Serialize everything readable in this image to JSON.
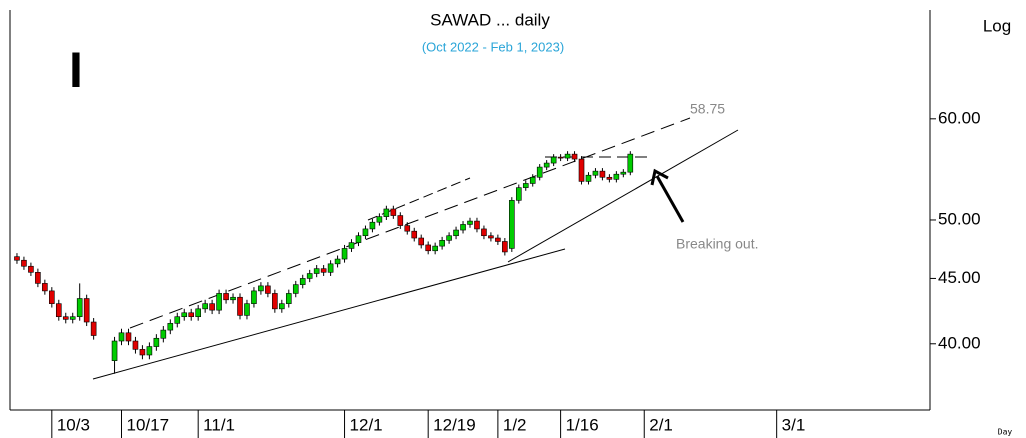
{
  "chart_data": {
    "type": "candlestick",
    "title": "SAWAD ... daily",
    "subtitle": "(Oct 2022 - Feb 1, 2023)",
    "scale_label": "Log",
    "x_unit_label": "Day",
    "marker_text": "I",
    "annotations": [
      "58.75",
      "Breaking out."
    ],
    "log_scale": true,
    "up_color": "#00cc00",
    "down_color": "#e00000",
    "xlim": [
      -6,
      126
    ],
    "ylim": [
      35.5,
      73
    ],
    "xticks": [
      {
        "value": 0,
        "label": "10/3"
      },
      {
        "value": 10,
        "label": "10/17"
      },
      {
        "value": 21,
        "label": "11/1"
      },
      {
        "value": 42,
        "label": "12/1"
      },
      {
        "value": 54,
        "label": "12/19"
      },
      {
        "value": 64,
        "label": "1/2"
      },
      {
        "value": 73,
        "label": "1/16"
      },
      {
        "value": 85,
        "label": "2/1"
      },
      {
        "value": 104,
        "label": "3/1"
      }
    ],
    "yticks": [
      {
        "value": 40,
        "label": "40.00"
      },
      {
        "value": 45,
        "label": "45.00"
      },
      {
        "value": 50,
        "label": "50.00"
      },
      {
        "value": 60,
        "label": "60.00"
      }
    ],
    "x": [
      -5,
      -4,
      -3,
      -2,
      -1,
      0,
      1,
      2,
      3,
      4,
      5,
      6,
      9,
      10,
      11,
      12,
      13,
      14,
      15,
      16,
      17,
      18,
      19,
      20,
      21,
      22,
      23,
      24,
      25,
      26,
      27,
      28,
      29,
      30,
      31,
      32,
      33,
      34,
      35,
      36,
      37,
      38,
      39,
      40,
      41,
      42,
      43,
      44,
      45,
      46,
      47,
      48,
      49,
      50,
      51,
      52,
      53,
      54,
      55,
      56,
      57,
      58,
      59,
      60,
      61,
      62,
      63,
      64,
      65,
      66,
      67,
      68,
      69,
      70,
      71,
      72,
      73,
      74,
      75,
      76,
      77,
      78,
      79,
      80,
      81,
      82,
      83
    ],
    "open": [
      46.8,
      46.5,
      46.0,
      45.5,
      44.6,
      44.0,
      43.0,
      42.0,
      41.8,
      42.0,
      43.4,
      41.6,
      38.8,
      40.2,
      40.8,
      40.2,
      39.6,
      39.2,
      39.8,
      40.4,
      41.0,
      41.5,
      42.0,
      42.3,
      42.0,
      42.6,
      43.0,
      42.5,
      43.8,
      43.3,
      43.5,
      42.1,
      43.0,
      44.0,
      44.4,
      43.8,
      42.6,
      43.0,
      43.8,
      44.5,
      45.0,
      45.4,
      45.8,
      45.5,
      46.2,
      46.6,
      47.5,
      48.0,
      48.6,
      49.2,
      49.8,
      50.3,
      51.0,
      50.4,
      49.5,
      49.0,
      48.4,
      47.8,
      47.3,
      47.7,
      48.2,
      48.6,
      49.1,
      49.6,
      49.9,
      49.2,
      48.6,
      48.4,
      48.1,
      47.5,
      51.8,
      53.0,
      53.4,
      54.0,
      55.0,
      55.4,
      56.0,
      55.9,
      56.3,
      55.8,
      53.6,
      54.2,
      54.6,
      54.0,
      53.8,
      54.3,
      54.5
    ],
    "high": [
      47.1,
      46.8,
      46.3,
      45.8,
      44.9,
      44.3,
      43.3,
      42.3,
      42.3,
      44.6,
      43.7,
      41.9,
      40.5,
      41.1,
      41.1,
      40.5,
      39.9,
      40.1,
      40.7,
      41.3,
      41.8,
      42.3,
      42.6,
      42.6,
      42.9,
      43.3,
      43.3,
      44.1,
      44.1,
      43.8,
      43.8,
      43.3,
      44.3,
      44.7,
      44.7,
      44.1,
      43.3,
      44.1,
      44.8,
      45.3,
      45.7,
      46.1,
      46.1,
      46.5,
      46.9,
      47.8,
      48.3,
      48.9,
      49.5,
      50.1,
      50.6,
      51.3,
      51.3,
      50.7,
      49.8,
      49.3,
      48.7,
      48.1,
      48.0,
      48.5,
      48.9,
      49.4,
      49.9,
      50.2,
      50.2,
      49.5,
      48.9,
      48.7,
      48.4,
      52.1,
      53.3,
      53.7,
      54.3,
      55.3,
      55.7,
      56.3,
      56.3,
      56.6,
      56.6,
      56.1,
      54.5,
      54.9,
      54.9,
      54.3,
      54.6,
      54.8,
      56.6
    ],
    "low": [
      46.2,
      45.7,
      45.2,
      44.3,
      43.7,
      42.7,
      41.7,
      41.5,
      41.5,
      41.7,
      41.3,
      40.3,
      37.9,
      39.9,
      39.9,
      39.3,
      38.9,
      38.9,
      39.5,
      40.1,
      40.7,
      41.2,
      41.7,
      41.7,
      41.7,
      42.3,
      42.2,
      42.2,
      43.0,
      43.0,
      41.8,
      41.8,
      42.7,
      43.7,
      43.5,
      42.3,
      42.3,
      42.7,
      43.5,
      44.2,
      44.7,
      45.1,
      45.2,
      45.2,
      45.9,
      46.3,
      47.2,
      47.7,
      48.3,
      48.9,
      49.5,
      50.0,
      50.1,
      49.2,
      48.7,
      48.1,
      47.5,
      47.0,
      47.0,
      47.4,
      47.9,
      48.3,
      48.8,
      49.3,
      48.9,
      48.3,
      48.1,
      47.8,
      46.9,
      47.2,
      51.5,
      52.7,
      53.1,
      53.7,
      54.7,
      55.1,
      55.6,
      55.6,
      55.5,
      53.3,
      53.3,
      53.9,
      53.7,
      53.5,
      53.5,
      54.0,
      54.2
    ],
    "close": [
      46.5,
      46.0,
      45.5,
      44.6,
      44.0,
      43.0,
      42.0,
      41.8,
      42.0,
      43.4,
      41.6,
      40.6,
      40.2,
      40.8,
      40.2,
      39.6,
      39.2,
      39.8,
      40.4,
      41.0,
      41.5,
      42.0,
      42.3,
      42.0,
      42.6,
      43.0,
      42.5,
      43.8,
      43.3,
      43.5,
      42.1,
      43.0,
      44.0,
      44.4,
      43.8,
      42.6,
      43.0,
      43.8,
      44.5,
      45.0,
      45.4,
      45.8,
      45.5,
      46.2,
      46.6,
      47.5,
      48.0,
      48.6,
      49.2,
      49.8,
      50.3,
      51.0,
      50.4,
      49.5,
      49.0,
      48.4,
      47.8,
      47.3,
      47.7,
      48.2,
      48.6,
      49.1,
      49.6,
      49.9,
      49.2,
      48.6,
      48.4,
      48.1,
      47.2,
      51.8,
      53.0,
      53.4,
      54.0,
      55.0,
      55.4,
      56.0,
      55.9,
      56.3,
      55.8,
      53.6,
      54.2,
      54.6,
      54.0,
      53.8,
      54.3,
      54.5,
      56.3
    ]
  }
}
